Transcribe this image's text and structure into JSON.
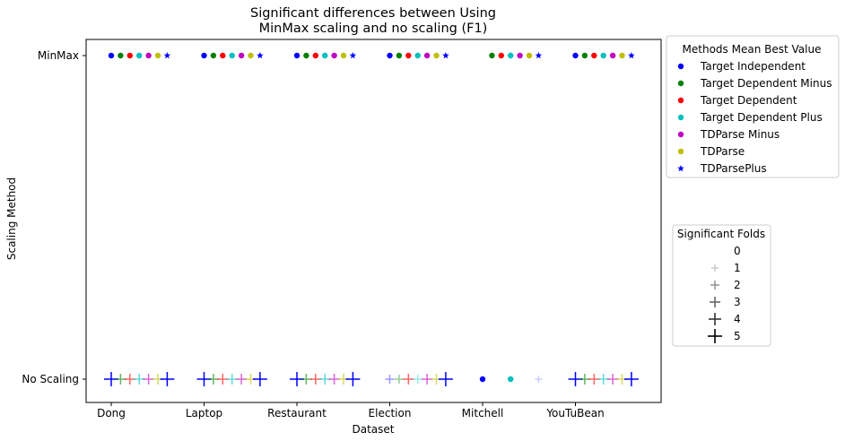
{
  "chart_data": {
    "type": "scatter",
    "title_line1": "Significant differences between Using",
    "title_line2": "MinMax scaling and no scaling (F1)",
    "xlabel": "Dataset",
    "ylabel": "Scaling Method",
    "categories": [
      "Dong",
      "Laptop",
      "Restaurant",
      "Election",
      "Mitchell",
      "YouTuBean"
    ],
    "y_categories": [
      "No Scaling",
      "MinMax"
    ],
    "series": [
      {
        "name": "Target Independent",
        "color": "#0000ff",
        "marker": "circle"
      },
      {
        "name": "Target Dependent Minus",
        "color": "#008000",
        "marker": "circle"
      },
      {
        "name": "Target Dependent",
        "color": "#ff0000",
        "marker": "circle"
      },
      {
        "name": "Target Dependent Plus",
        "color": "#00bfbf",
        "marker": "circle"
      },
      {
        "name": "TDParse Minus",
        "color": "#bf00bf",
        "marker": "circle"
      },
      {
        "name": "TDParse",
        "color": "#bfbf00",
        "marker": "circle"
      },
      {
        "name": "TDParsePlus",
        "color": "#0000ff",
        "marker": "star"
      }
    ],
    "minmax_best": [
      [
        1,
        1,
        1,
        1,
        1,
        1,
        1
      ],
      [
        1,
        1,
        1,
        1,
        1,
        1,
        1
      ],
      [
        1,
        1,
        1,
        1,
        1,
        1,
        1
      ],
      [
        1,
        1,
        1,
        1,
        1,
        1,
        1
      ],
      [
        0,
        1,
        1,
        1,
        1,
        1,
        1
      ],
      [
        1,
        1,
        1,
        1,
        1,
        1,
        1
      ]
    ],
    "no_scaling_best": [
      [
        0,
        0,
        0,
        0,
        0,
        0,
        0
      ],
      [
        0,
        0,
        0,
        0,
        0,
        0,
        0
      ],
      [
        0,
        0,
        0,
        0,
        0,
        0,
        0
      ],
      [
        0,
        0,
        0,
        0,
        0,
        0,
        0
      ],
      [
        1,
        0,
        0,
        1,
        0,
        0,
        0
      ],
      [
        0,
        0,
        0,
        0,
        0,
        0,
        0
      ]
    ],
    "minmax_significant_folds": [
      [
        0,
        0,
        0,
        0,
        0,
        0,
        0
      ],
      [
        0,
        0,
        0,
        0,
        0,
        0,
        0
      ],
      [
        0,
        0,
        0,
        0,
        0,
        0,
        0
      ],
      [
        0,
        0,
        0,
        0,
        0,
        0,
        0
      ],
      [
        0,
        0,
        0,
        1,
        0,
        0,
        0
      ],
      [
        0,
        0,
        0,
        0,
        0,
        0,
        0
      ]
    ],
    "no_scaling_significant_folds": [
      [
        5,
        3,
        3,
        3,
        3,
        3,
        5
      ],
      [
        5,
        3,
        3,
        3,
        3,
        3,
        5
      ],
      [
        5,
        3,
        3,
        3,
        3,
        3,
        5
      ],
      [
        2,
        2,
        3,
        2,
        3,
        3,
        5
      ],
      [
        0,
        0,
        0,
        0,
        0,
        0,
        1
      ],
      [
        5,
        3,
        3,
        3,
        3,
        3,
        5
      ]
    ],
    "legend_methods_title": "Methods Mean Best Value",
    "legend_folds_title": "Significant Folds",
    "fold_levels": [
      "0",
      "1",
      "2",
      "3",
      "4",
      "5"
    ],
    "legend_placement": "outside-right",
    "grid": false
  }
}
